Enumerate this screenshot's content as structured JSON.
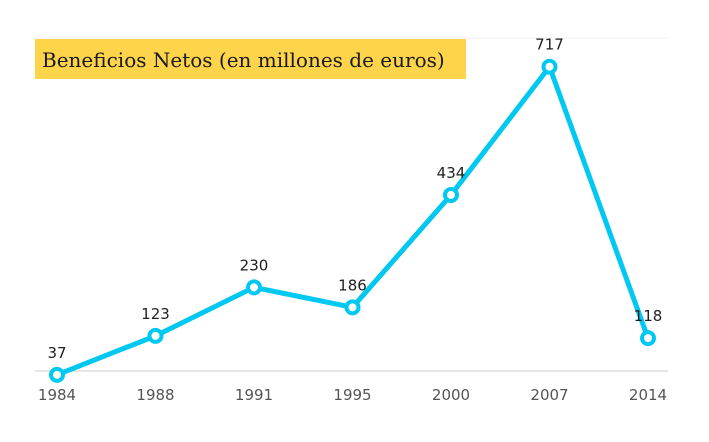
{
  "chart_data": {
    "type": "line",
    "title": "Beneficios Netos (en millones de euros)",
    "xlabel": "",
    "ylabel": "",
    "categories": [
      "1984",
      "1988",
      "1991",
      "1995",
      "2000",
      "2007",
      "2014"
    ],
    "values": [
      37,
      123,
      230,
      186,
      434,
      717,
      118
    ],
    "ylim": [
      0,
      717
    ],
    "grid": false,
    "legend": "none",
    "colors": {
      "line": "#00c8f0",
      "marker_fill": "#ffffff",
      "title_background": "#fdd44a",
      "axis": "#cccccc"
    }
  }
}
